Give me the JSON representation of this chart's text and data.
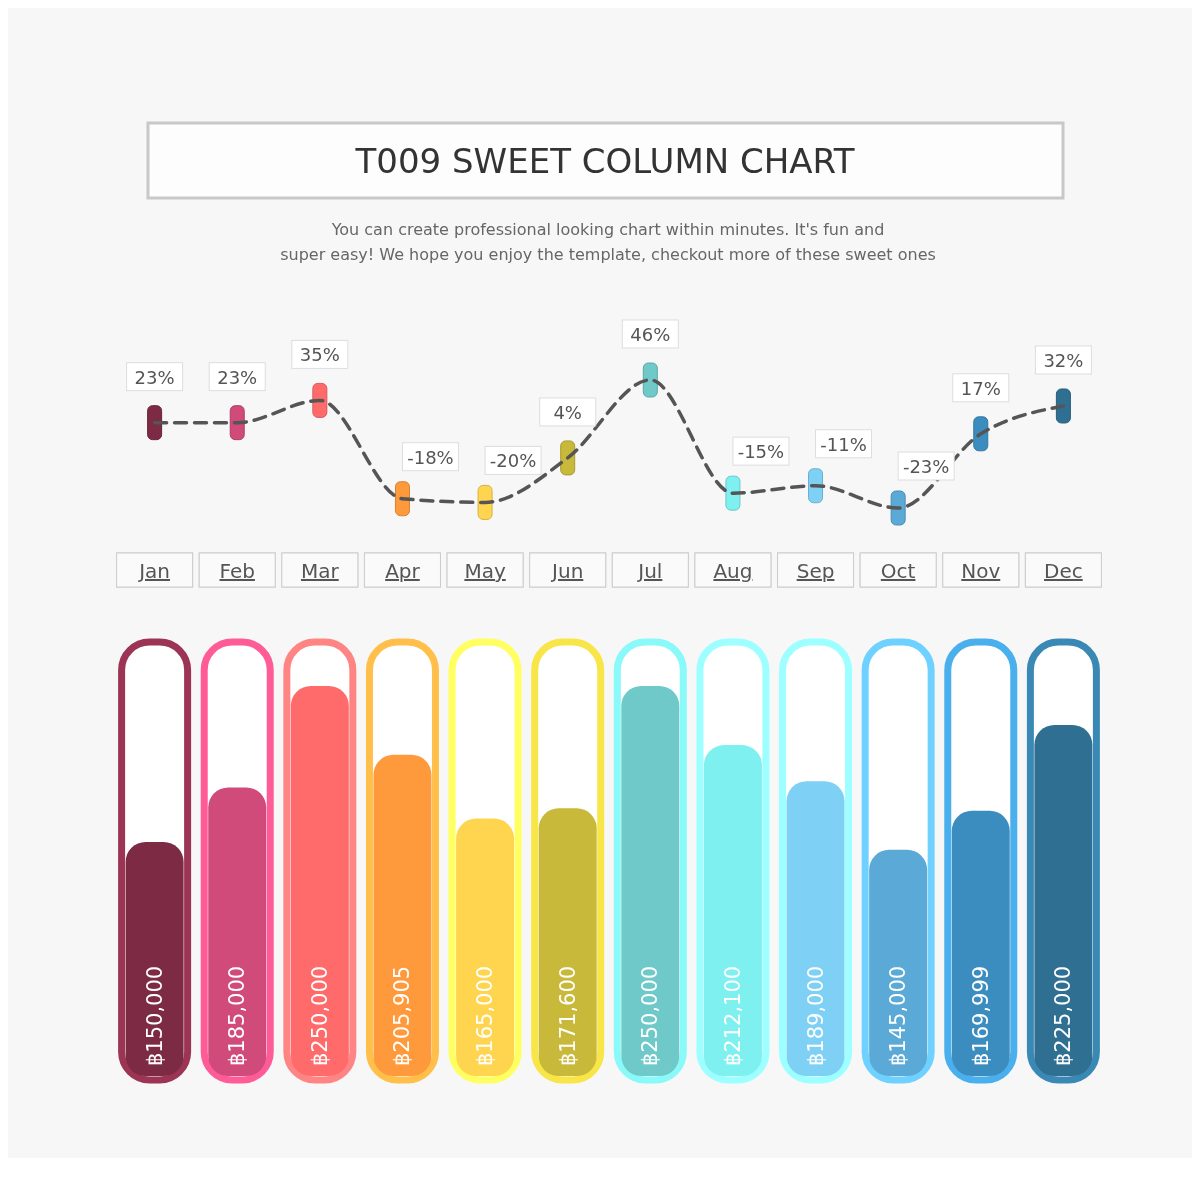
{
  "chart_data": [
    {
      "type": "line",
      "title": "T009 SWEET COLUMN CHART",
      "subtitle": "You can create professional looking chart within minutes. It's fun and super easy! We hope you enjoy the template, checkout more of these sweet ones",
      "categories": [
        null,
        null,
        null,
        null,
        null,
        null,
        null,
        null,
        null,
        null,
        null,
        null
      ],
      "line_style": "dashed",
      "marker": "square",
      "series": [
        {
          "color": "#555555",
          "colors": [
            "#7d2a45",
            "#d04a7a",
            "#ff6b6b",
            "#ff9a3c",
            "#ffd54f",
            "#c8b93a",
            "#6fc9c9",
            "#7ff0f0",
            "#7fd0f5",
            "#5aa9d6",
            "#3c8dbf",
            "#2f6f92"
          ],
          "values": [
            23,
            23,
            35,
            -18,
            -20,
            4,
            46,
            -15,
            -11,
            -23,
            17,
            32
          ],
          "value_labels": [
            "23%",
            "23%",
            "35%",
            "-18%",
            "-20%",
            "4%",
            "46%",
            "-15%",
            "-11%",
            "-23%",
            "17%",
            "32%"
          ]
        }
      ]
    },
    {
      "type": "bar",
      "categories": [
        "Jan",
        "Feb",
        "Mar",
        "Apr",
        "May",
        "Jun",
        "Jul",
        "Aug",
        "Sep",
        "Oct",
        "Nov",
        "Dec"
      ],
      "series": [
        {
          "colors": [
            "#7d2a45",
            "#d04a7a",
            "#ff6b6b",
            "#ff9a3c",
            "#ffd54f",
            "#c8b93a",
            "#6fc9c9",
            "#7ff0f0",
            "#7fd0f5",
            "#5aa9d6",
            "#3c8dbf",
            "#2f6f92"
          ],
          "values": [
            150000,
            185000,
            250000,
            205905,
            165000,
            171600,
            250000,
            212100,
            189000,
            145000,
            169999,
            225000
          ],
          "value_labels": [
            "฿150,000",
            "฿185,000",
            "฿250,000",
            "฿205,905",
            "฿165,000",
            "฿171,600",
            "฿250,000",
            "฿212,100",
            "฿189,000",
            "฿145,000",
            "฿169,999",
            "฿225,000"
          ]
        }
      ]
    }
  ]
}
